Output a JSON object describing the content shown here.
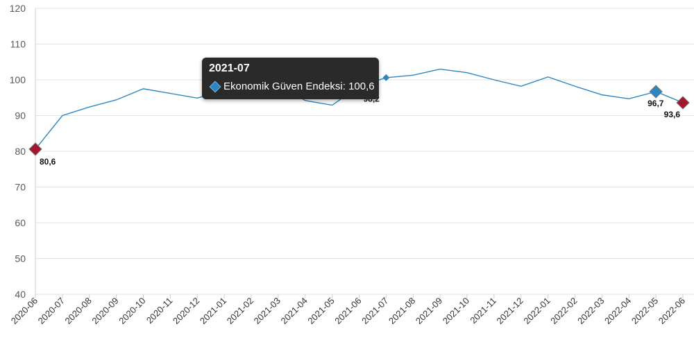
{
  "chart_data": {
    "type": "line",
    "x": [
      "2020-06",
      "2020-07",
      "2020-08",
      "2020-09",
      "2020-10",
      "2020-11",
      "2020-12",
      "2021-01",
      "2021-02",
      "2021-03",
      "2021-04",
      "2021-05",
      "2021-06",
      "2021-07",
      "2021-08",
      "2021-09",
      "2021-10",
      "2021-11",
      "2021-12",
      "2022-01",
      "2022-02",
      "2022-03",
      "2022-04",
      "2022-05",
      "2022-06"
    ],
    "series": [
      {
        "name": "Ekonomik Güven Endeksi",
        "color": "#2e86c1",
        "values": [
          80.6,
          90.0,
          92.4,
          94.4,
          97.5,
          96.2,
          94.9,
          97.0,
          99.4,
          98.7,
          94.2,
          92.9,
          98.2,
          100.6,
          101.3,
          103.0,
          102.0,
          100.0,
          98.2,
          100.8,
          98.2,
          95.8,
          94.7,
          96.7,
          93.6
        ]
      }
    ],
    "ylim": [
      40,
      120
    ],
    "yticks": [
      "40",
      "50",
      "60",
      "70",
      "80",
      "90",
      "100",
      "110",
      "120"
    ],
    "grid": true,
    "markers": [
      {
        "index": 0,
        "color": "#a3172c",
        "label": "80,6"
      },
      {
        "index": 12,
        "color": "#a3172c",
        "label": "98,2"
      },
      {
        "index": 13,
        "color": "#2e86c1",
        "label": ""
      },
      {
        "index": 23,
        "color": "#2e86c1",
        "label": "96,7"
      },
      {
        "index": 24,
        "color": "#a3172c",
        "label": "93,6"
      }
    ]
  },
  "tooltip": {
    "title": "2021-07",
    "text": "Ekonomik Güven Endeksi: 100,6"
  }
}
